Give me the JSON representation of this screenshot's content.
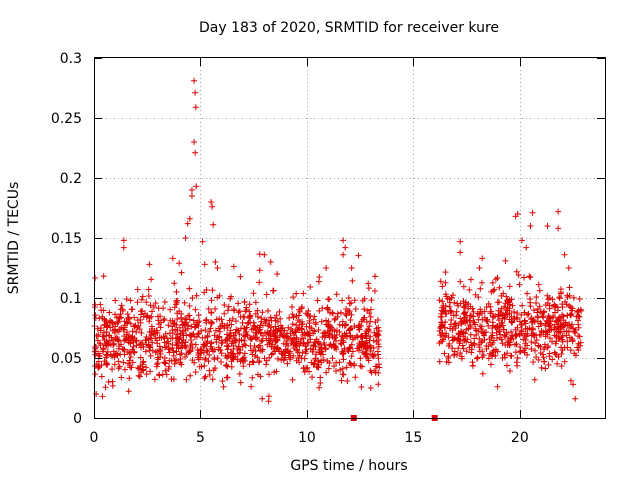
{
  "chart_data": {
    "type": "scatter",
    "title": "Day 183 of 2020, SRMTID for receiver kure",
    "xlabel": "GPS time / hours",
    "ylabel": "SRMTID / TECUs",
    "xlim": [
      0,
      24
    ],
    "ylim": [
      0,
      0.3
    ],
    "xticks": [
      0,
      5,
      10,
      15,
      20
    ],
    "xtick_labels": [
      "0",
      "5",
      "10",
      "15",
      "20"
    ],
    "yticks": [
      0,
      0.05,
      0.1,
      0.15,
      0.2,
      0.25,
      0.3
    ],
    "ytick_labels": [
      "0",
      "0.05",
      "0.1",
      "0.15",
      "0.2",
      "0.25",
      "0.3"
    ],
    "grid": true,
    "marker": "plus",
    "color": "#dd0000",
    "series": [
      {
        "name": "SRMTID",
        "segments": [
          {
            "x_start": 0.0,
            "x_end": 13.4,
            "baseline": 0.065,
            "spread": 0.028
          },
          {
            "x_start": 16.2,
            "x_end": 22.9,
            "baseline": 0.075,
            "spread": 0.028
          }
        ],
        "points": [
          [
            1.4,
            0.148
          ],
          [
            1.4,
            0.142
          ],
          [
            2.6,
            0.128
          ],
          [
            3.7,
            0.133
          ],
          [
            4.0,
            0.129
          ],
          [
            4.3,
            0.15
          ],
          [
            4.4,
            0.162
          ],
          [
            4.5,
            0.166
          ],
          [
            4.6,
            0.185
          ],
          [
            4.6,
            0.19
          ],
          [
            4.7,
            0.281
          ],
          [
            4.75,
            0.271
          ],
          [
            4.78,
            0.259
          ],
          [
            4.7,
            0.23
          ],
          [
            4.75,
            0.221
          ],
          [
            4.8,
            0.193
          ],
          [
            5.1,
            0.147
          ],
          [
            5.2,
            0.128
          ],
          [
            5.5,
            0.18
          ],
          [
            5.55,
            0.176
          ],
          [
            5.6,
            0.161
          ],
          [
            5.7,
            0.13
          ],
          [
            5.8,
            0.125
          ],
          [
            8.0,
            0.136
          ],
          [
            8.3,
            0.13
          ],
          [
            8.6,
            0.12
          ],
          [
            10.9,
            0.125
          ],
          [
            11.7,
            0.136
          ],
          [
            11.7,
            0.148
          ],
          [
            11.8,
            0.142
          ],
          [
            12.1,
            0.125
          ],
          [
            13.2,
            0.118
          ],
          [
            0.1,
            0.02
          ],
          [
            0.4,
            0.018
          ],
          [
            7.9,
            0.016
          ],
          [
            8.2,
            0.014
          ],
          [
            13.0,
            0.025
          ],
          [
            17.2,
            0.147
          ],
          [
            17.2,
            0.138
          ],
          [
            18.1,
            0.125
          ],
          [
            19.9,
            0.17
          ],
          [
            19.8,
            0.168
          ],
          [
            20.1,
            0.148
          ],
          [
            20.3,
            0.142
          ],
          [
            20.5,
            0.16
          ],
          [
            20.6,
            0.171
          ],
          [
            21.3,
            0.16
          ],
          [
            21.8,
            0.172
          ],
          [
            21.8,
            0.158
          ],
          [
            22.1,
            0.136
          ],
          [
            22.3,
            0.125
          ],
          [
            22.5,
            0.028
          ],
          [
            22.6,
            0.016
          ],
          [
            22.4,
            0.031
          ]
        ]
      }
    ],
    "markers_on_axis": [
      {
        "x": 12.2,
        "y": 0
      },
      {
        "x": 16.0,
        "y": 0
      }
    ]
  }
}
